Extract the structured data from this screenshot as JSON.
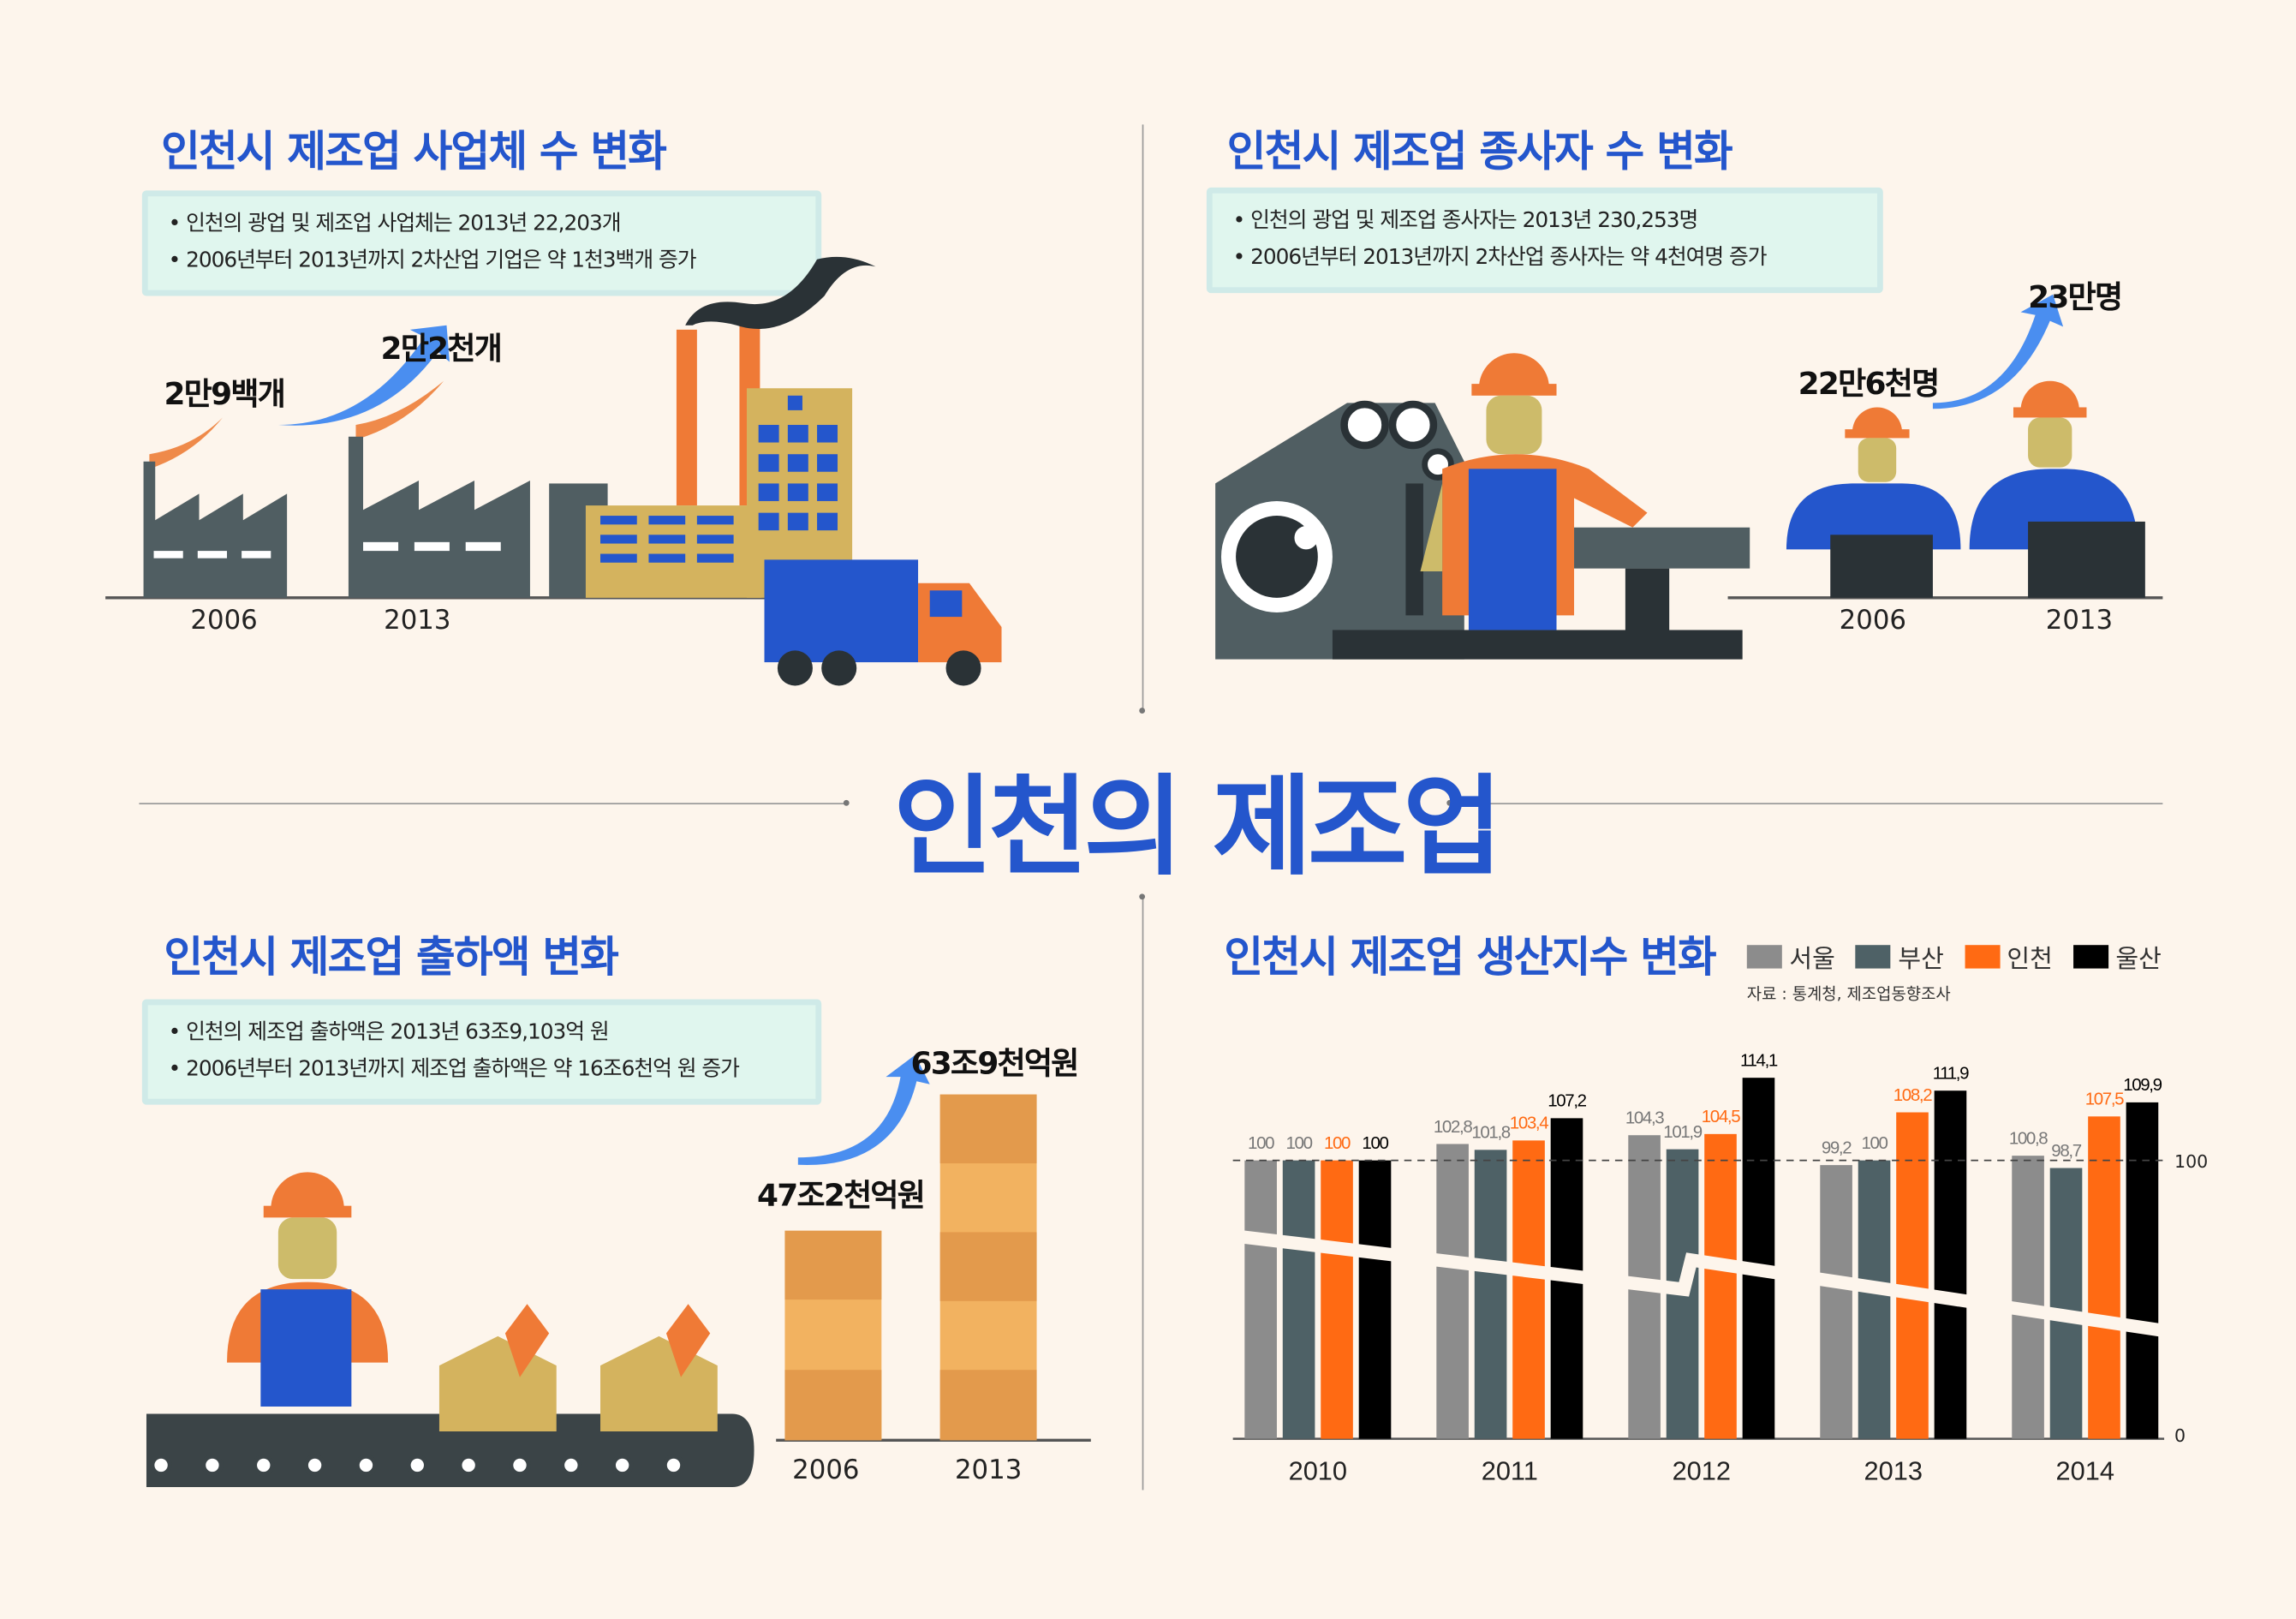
{
  "main_title": "인천의 제조업",
  "sections": {
    "businesses": {
      "title": "인천시 제조업 사업체 수 변화",
      "bullets": [
        "인천의 광업 및 제조업 사업체는 2013년 22,203개",
        "2006년부터 2013년까지 2차산업 기업은 약 1천3백개 증가"
      ],
      "value_2006": "2만9백개",
      "value_2013": "2만2천개",
      "years": [
        "2006",
        "2013"
      ]
    },
    "workers": {
      "title": "인천시 제조업 종사자 수 변화",
      "bullets": [
        "인천의 광업 및 제조업 종사자는 2013년 230,253명",
        "2006년부터 2013년까지 2차산업 종사자는 약 4천여명 증가"
      ],
      "value_2006": "22만6천명",
      "value_2013": "23만명",
      "years": [
        "2006",
        "2013"
      ]
    },
    "shipments": {
      "title": "인천시 제조업 출하액 변화",
      "bullets": [
        "인천의 제조업 출하액은 2013년 63조9,103억 원",
        "2006년부터 2013년까지 제조업 출하액은 약 16조6천억 원 증가"
      ],
      "value_2006": "47조2천억원",
      "value_2013": "63조9천억원",
      "years": [
        "2006",
        "2013"
      ]
    }
  },
  "chart_data": {
    "type": "bar",
    "title": "인천시 제조업 생산지수 변화",
    "source": "자료 : 통계청, 제조업동향조사",
    "categories": [
      "2010",
      "2011",
      "2012",
      "2013",
      "2014"
    ],
    "series": [
      {
        "name": "서울",
        "color": "#8c8c8c",
        "values": [
          100,
          102.8,
          104.3,
          99.2,
          100.8
        ]
      },
      {
        "name": "부산",
        "color": "#4e6166",
        "values": [
          100,
          101.8,
          101.9,
          100,
          98.7
        ]
      },
      {
        "name": "인천",
        "color": "#ff6a13",
        "values": [
          100,
          103.4,
          104.5,
          108.2,
          107.5
        ]
      },
      {
        "name": "울산",
        "color": "#000000",
        "values": [
          100,
          107.2,
          114.1,
          111.9,
          109.9
        ]
      }
    ],
    "value_labels": [
      [
        "100",
        "102,8",
        "104,3",
        "99,2",
        "100,8"
      ],
      [
        "100",
        "101,8",
        "101,9",
        "100",
        "98,7"
      ],
      [
        "100",
        "103,4",
        "104,5",
        "108,2",
        "107,5"
      ],
      [
        "100",
        "107,2",
        "114,1",
        "111,9",
        "109,9"
      ]
    ],
    "y_ticks": [
      "0",
      "100"
    ],
    "reference_line": 100,
    "axis_break": true
  }
}
